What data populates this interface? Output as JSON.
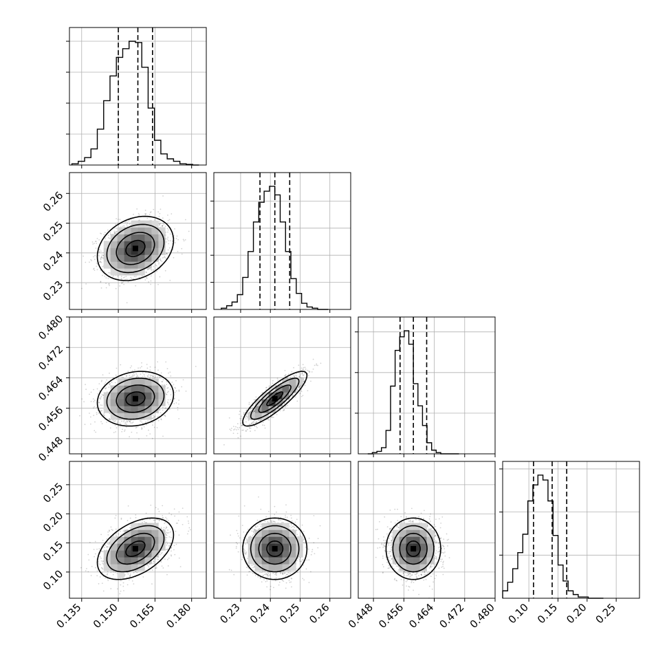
{
  "chart_data": {
    "type": "scatter",
    "title": "",
    "parameters": [
      {
        "range": [
          0.13,
          0.186
        ],
        "ticks": [
          0.135,
          0.15,
          0.165,
          0.18
        ],
        "tick_labels": [
          "0.135",
          "0.150",
          "0.165",
          "0.180"
        ],
        "mean": 0.157,
        "sd": 0.0065,
        "quantiles": [
          0.15,
          0.158,
          0.164
        ],
        "hist": [
          0.01,
          0.03,
          0.06,
          0.13,
          0.29,
          0.52,
          0.72,
          0.87,
          0.94,
          1.0,
          0.99,
          0.79,
          0.46,
          0.2,
          0.09,
          0.05,
          0.03,
          0.01,
          0.005,
          0.0
        ]
      },
      {
        "range": [
          0.221,
          0.267
        ],
        "ticks": [
          0.23,
          0.24,
          0.25,
          0.26
        ],
        "tick_labels": [
          "0.23",
          "0.24",
          "0.25",
          "0.26"
        ],
        "mean": 0.2415,
        "sd": 0.0045,
        "quantiles": [
          0.2365,
          0.2415,
          0.2465
        ],
        "hist": [
          0.01,
          0.03,
          0.06,
          0.12,
          0.26,
          0.47,
          0.71,
          0.87,
          0.96,
          1.0,
          0.93,
          0.71,
          0.47,
          0.25,
          0.13,
          0.05,
          0.02,
          0.01,
          0.0,
          0.0
        ]
      },
      {
        "range": [
          0.444,
          0.48
        ],
        "ticks": [
          0.448,
          0.456,
          0.464,
          0.472,
          0.48
        ],
        "tick_labels": [
          "0.448",
          "0.456",
          "0.464",
          "0.472",
          "0.480"
        ],
        "mean": 0.4585,
        "sd": 0.003,
        "quantiles": [
          0.455,
          0.4585,
          0.462
        ],
        "hist": [
          0.0,
          0.01,
          0.02,
          0.05,
          0.19,
          0.55,
          0.84,
          0.95,
          1.0,
          0.89,
          0.57,
          0.39,
          0.23,
          0.09,
          0.03,
          0.01,
          0.0,
          0.0,
          0.0,
          0.0
        ]
      },
      {
        "range": [
          0.055,
          0.29
        ],
        "ticks": [
          0.1,
          0.15,
          0.2,
          0.25
        ],
        "tick_labels": [
          "0.10",
          "0.15",
          "0.20",
          "0.25"
        ],
        "mean": 0.14,
        "sd": 0.022,
        "quantiles": [
          0.108,
          0.14,
          0.165
        ],
        "hist": [
          0.06,
          0.13,
          0.24,
          0.37,
          0.52,
          0.79,
          0.92,
          1.0,
          0.96,
          0.79,
          0.51,
          0.27,
          0.14,
          0.06,
          0.03,
          0.01,
          0.01,
          0.0,
          0.0,
          0.0
        ]
      }
    ],
    "pairs": [
      {
        "x": 0,
        "y": 1,
        "corr": 0.25
      },
      {
        "x": 0,
        "y": 2,
        "corr": 0.15
      },
      {
        "x": 1,
        "y": 2,
        "corr": 0.85
      },
      {
        "x": 0,
        "y": 3,
        "corr": 0.45
      },
      {
        "x": 1,
        "y": 3,
        "corr": 0.0
      },
      {
        "x": 2,
        "y": 3,
        "corr": 0.0
      }
    ],
    "hist_ytick_fractions": [
      [
        0.25,
        0.5,
        0.75,
        1.0
      ],
      [
        0.22,
        0.44,
        0.66,
        0.88
      ],
      [
        0.33,
        0.66,
        0.99
      ],
      [
        0.35,
        0.7,
        1.05
      ]
    ],
    "contour_levels_sigma": [
      0.5,
      1.0,
      1.5,
      2.0
    ],
    "grid": true,
    "legend": "none"
  }
}
